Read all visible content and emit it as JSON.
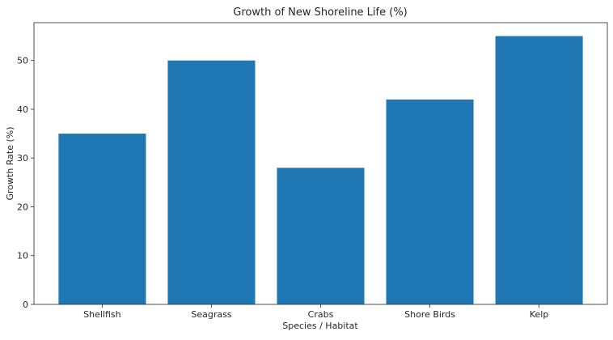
{
  "chart_data": {
    "type": "bar",
    "title": "Growth of New Shoreline Life (%)",
    "xlabel": "Species / Habitat",
    "ylabel": "Growth Rate (%)",
    "categories": [
      "Shellfish",
      "Seagrass",
      "Crabs",
      "Shore Birds",
      "Kelp"
    ],
    "values": [
      35,
      50,
      28,
      42,
      55
    ],
    "ylim": [
      0,
      57.75
    ],
    "yticks": [
      0,
      10,
      20,
      30,
      40,
      50
    ],
    "bar_color": "#1f77b4",
    "grid": false,
    "legend": "none"
  }
}
